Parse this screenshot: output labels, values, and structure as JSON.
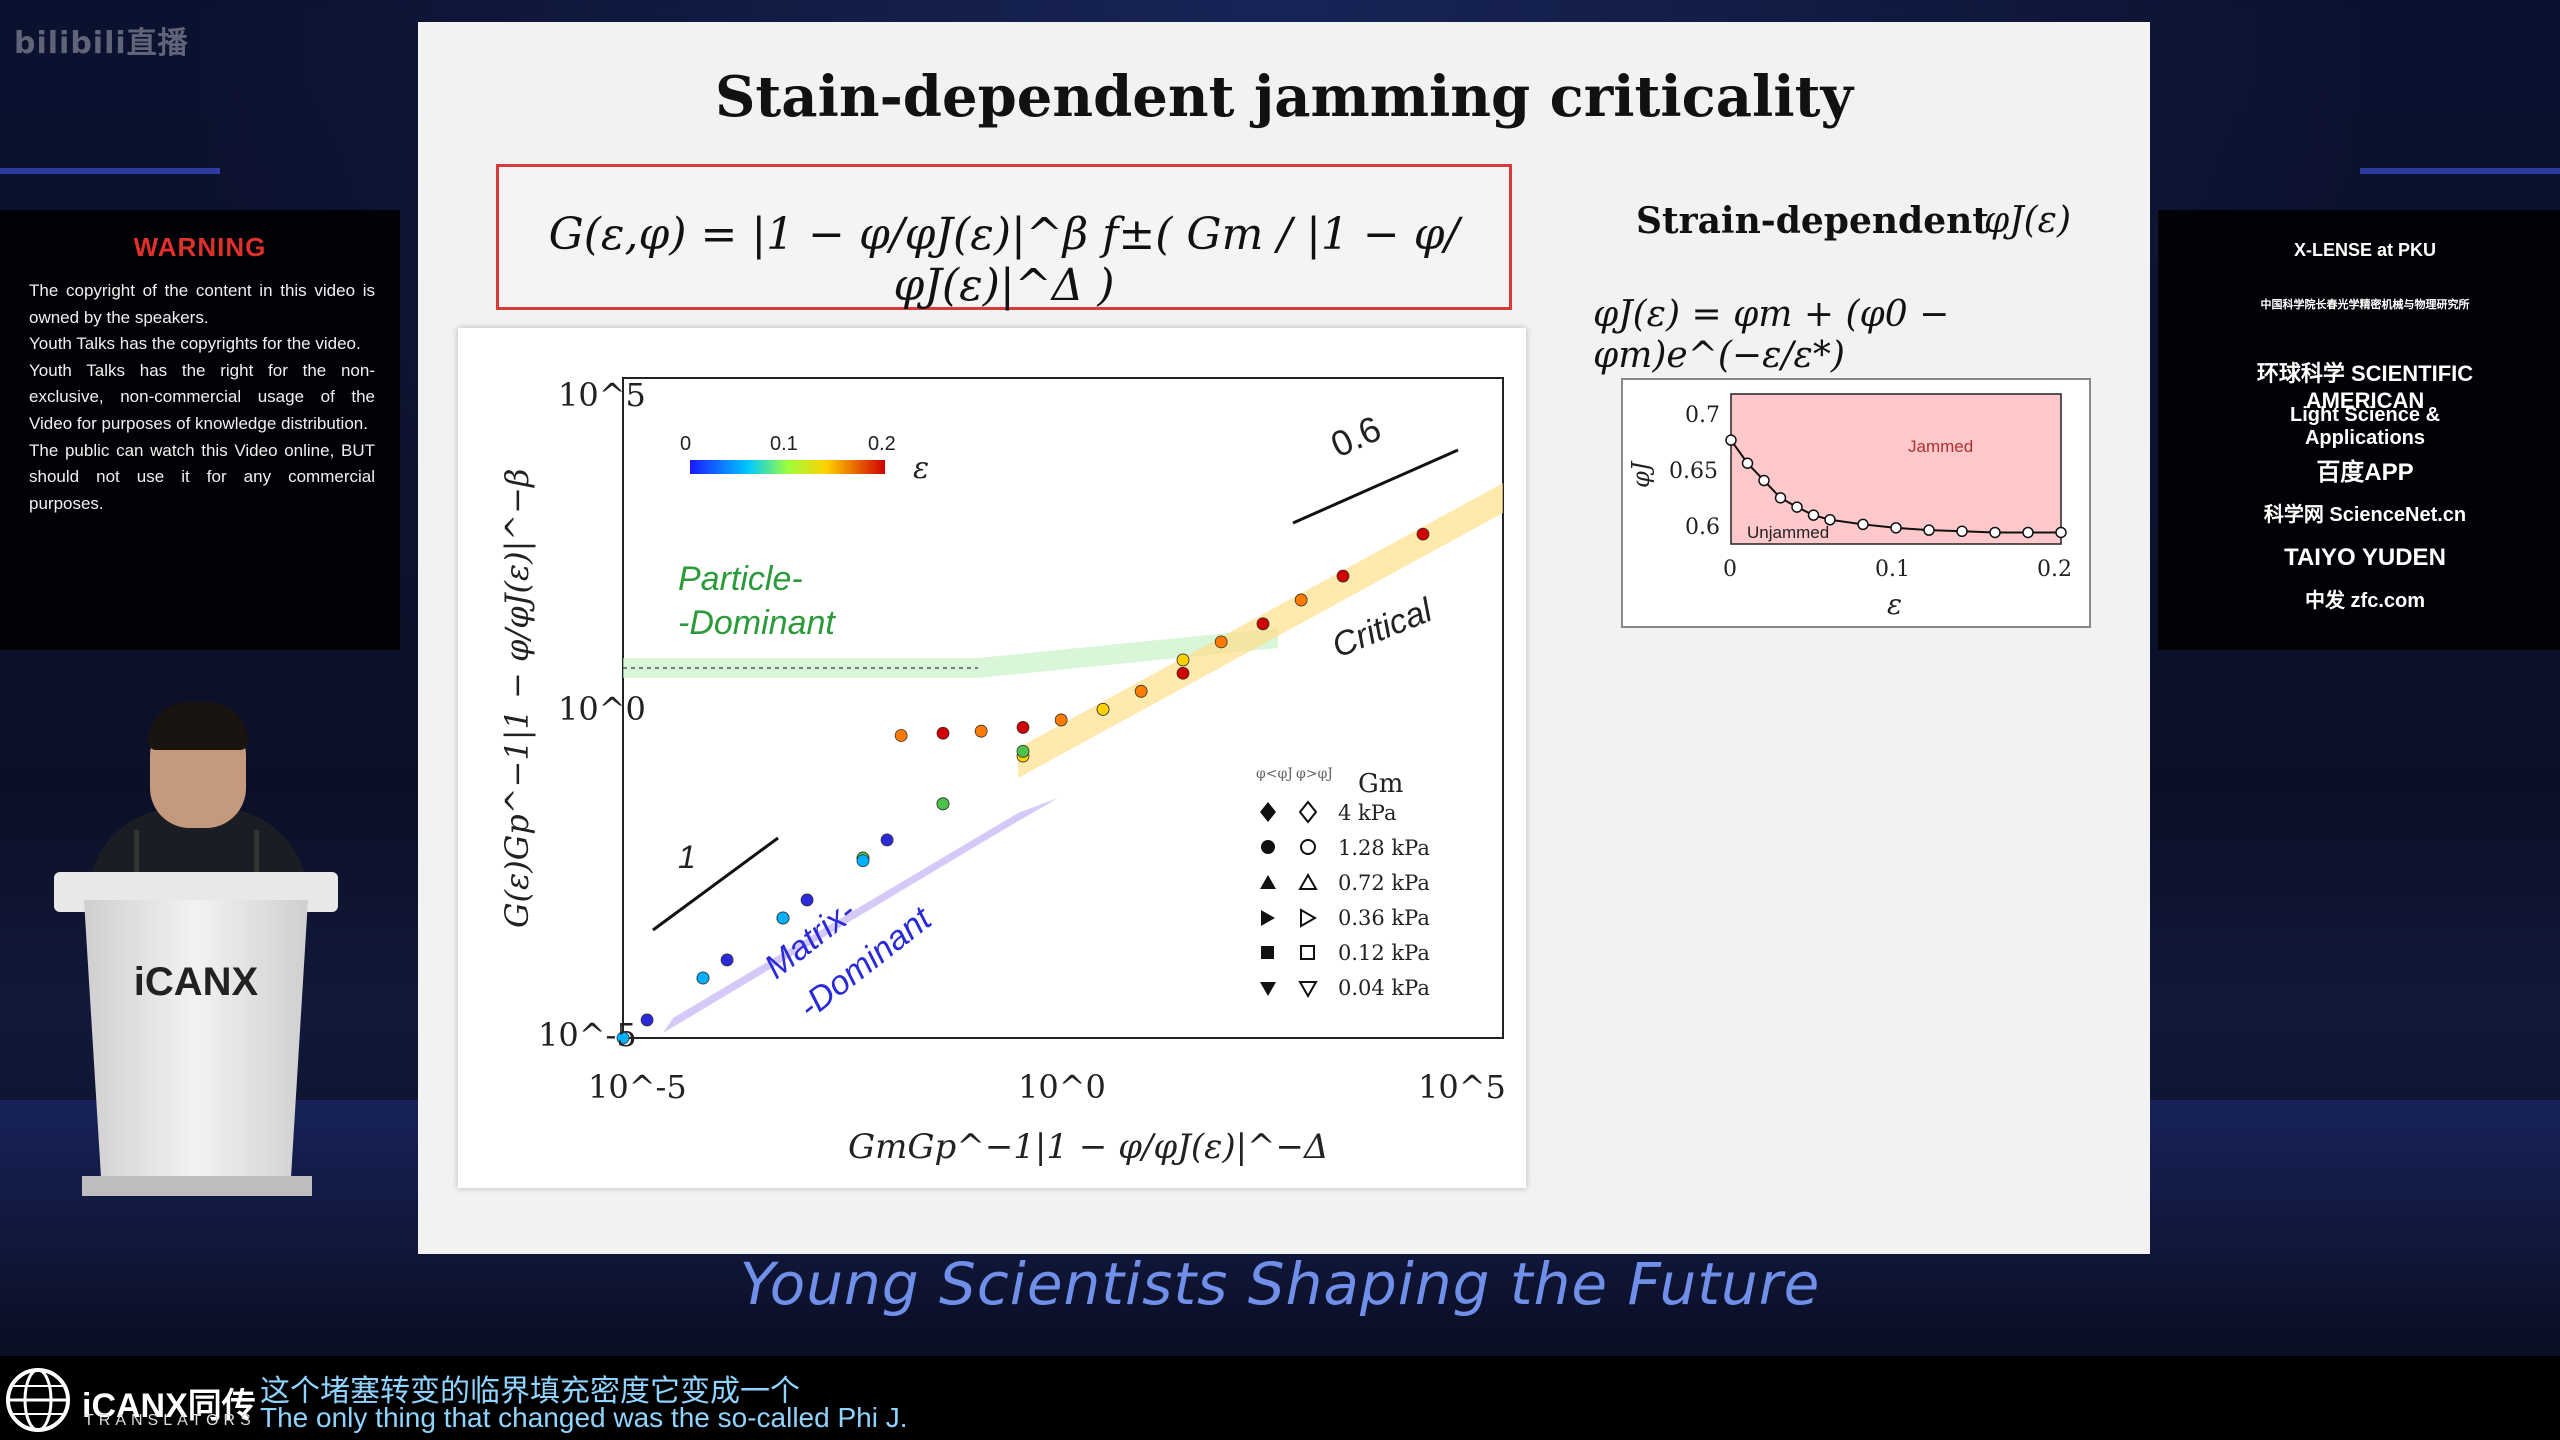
{
  "watermark": "bilibili直播",
  "warning": {
    "title": "WARNING",
    "lines": [
      "The copyright of the content in this video is owned by the speakers.",
      "Youth Talks has  the copyrights for the video.",
      "Youth Talks has the right for the non-exclusive, non-commercial  usage  of  the Video  for purposes of knowledge distribution.",
      "The public can watch this Video online, BUT should not use it for any commercial purposes."
    ]
  },
  "podium_logo": "iCANX",
  "slide": {
    "title": "Stain-dependent jamming criticality",
    "main_equation": "G(ε,φ) = |1 − φ/φJ(ε)|^β f±( Gm / |1 − φ/φJ(ε)|^Δ )",
    "strain_label": "Strain-dependent",
    "strain_symbol": "φJ(ε)",
    "phi_equation": "φJ(ε) = φm + (φ0 − φm)e^(−ε/ε*)",
    "main_plot": {
      "ylabel": "G(ε)Gp^−1|1 − φ/φJ(ε)|^−β",
      "xlabel": "GmGp^−1|1 − φ/φJ(ε)|^−Δ",
      "y_ticks": [
        "10^5",
        "10^0",
        "10^-5"
      ],
      "x_ticks": [
        "10^-5",
        "10^0",
        "10^5"
      ],
      "colorbar_ticks": [
        "0",
        "0.1",
        "0.2"
      ],
      "colorbar_label": "ε",
      "slope_high": "0.6",
      "slope_low": "1",
      "label_particle_line1": "Particle-",
      "label_particle_line2": "-Dominant",
      "label_matrix_line1": "Matrix-",
      "label_matrix_line2": "-Dominant",
      "label_critical": "Critical",
      "legend_header_left": "φ<φJ",
      "legend_header_right": "φ>φJ",
      "legend_title": "Gm",
      "legend_entries": [
        "4 kPa",
        "1.28 kPa",
        "0.72 kPa",
        "0.36 kPa",
        "0.12 kPa",
        "0.04 kPa"
      ]
    },
    "inset": {
      "ylabel": "φJ",
      "xlabel": "ε",
      "y_ticks": [
        "0.7",
        "0.65",
        "0.6"
      ],
      "x_ticks": [
        "0",
        "0.1",
        "0.2"
      ],
      "jammed_label": "Jammed",
      "unjammed_label": "Unjammed"
    }
  },
  "sponsors": [
    "X-LENSE at PKU",
    "中国科学院长春光学精密机械与物理研究所",
    "环球科学 SCIENTIFIC AMERICAN",
    "Light Science & Applications",
    "百度APP",
    "科学网 ScienceNet.cn",
    "TAIYO YUDEN",
    "中发 zfc.com"
  ],
  "tagline": "Young Scientists Shaping the Future",
  "translator": {
    "name": "iCANX同传",
    "sub": "TRANSLATORS"
  },
  "subtitles": {
    "cn": "这个堵塞转变的临界填充密度它变成一个",
    "en": "The only thing that changed was the so-called Phi J."
  },
  "colors": {
    "equation_border": "#d93a3a",
    "tagline": "#6f8fe8",
    "subtitle": "#8fd3ff",
    "warning": "#e0302c"
  },
  "chart_data": [
    {
      "type": "scatter",
      "title": "",
      "xlabel": "GmGp^−1|1 − φ/φJ(ε)|^−Δ",
      "ylabel": "G(ε)Gp^−1|1 − φ/φJ(ε)|^−β",
      "xscale": "log",
      "yscale": "log",
      "xlim": [
        1e-05,
        1000000.0
      ],
      "ylim": [
        1e-05,
        1000000.0
      ],
      "series": [
        {
          "name": "4 kPa",
          "x": [
            0.1,
            1,
            10,
            100,
            1000,
            10000,
            100000
          ],
          "y": [
            1.2,
            1.5,
            3,
            12,
            80,
            500,
            2500
          ]
        },
        {
          "name": "1.28 kPa",
          "x": [
            0.03,
            0.3,
            3,
            30,
            300,
            3000
          ],
          "y": [
            1.1,
            1.3,
            2,
            6,
            40,
            200
          ]
        },
        {
          "name": "0.72 kPa",
          "x": [
            0.001,
            0.01,
            0.1,
            1,
            10,
            100
          ],
          "y": [
            0.001,
            0.01,
            0.08,
            0.5,
            3,
            20
          ]
        },
        {
          "name": "0.36 kPa",
          "x": [
            0.0001,
            0.001,
            0.01,
            0.1,
            1
          ],
          "y": [
            0.0001,
            0.001,
            0.01,
            0.08,
            0.6
          ]
        },
        {
          "name": "0.12 kPa",
          "x": [
            1e-05,
            0.0001,
            0.001,
            0.01
          ],
          "y": [
            1e-05,
            0.0001,
            0.001,
            0.009
          ]
        },
        {
          "name": "0.04 kPa",
          "x": [
            2e-05,
            0.0002,
            0.002,
            0.02
          ],
          "y": [
            2e-05,
            0.0002,
            0.002,
            0.02
          ]
        }
      ],
      "legend": "inside bottom-right",
      "colorbar": {
        "label": "ε",
        "range": [
          0,
          0.2
        ]
      }
    },
    {
      "type": "line",
      "title": "",
      "xlabel": "ε",
      "ylabel": "φJ",
      "xlim": [
        0,
        0.2
      ],
      "ylim": [
        0.59,
        0.72
      ],
      "series": [
        {
          "x": [
            0,
            0.01,
            0.02,
            0.03,
            0.04,
            0.05,
            0.06,
            0.08,
            0.1,
            0.12,
            0.14,
            0.16,
            0.18,
            0.2
          ],
          "y": [
            0.68,
            0.66,
            0.645,
            0.63,
            0.622,
            0.615,
            0.611,
            0.607,
            0.604,
            0.602,
            0.601,
            0.6,
            0.6,
            0.6
          ]
        }
      ]
    }
  ]
}
